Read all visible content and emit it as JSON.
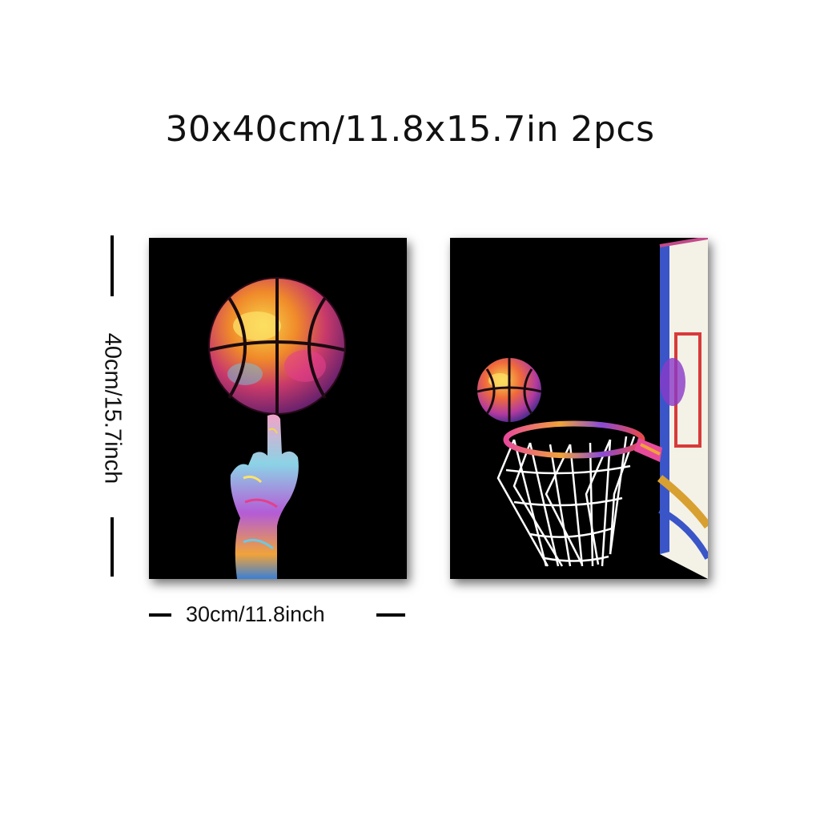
{
  "title": "30x40cm/11.8x15.7in 2pcs",
  "dimensions": {
    "height_label": "40cm/15.7inch",
    "width_label": "30cm/11.8inch"
  },
  "panels": [
    {
      "subject": "hand-spinning-basketball"
    },
    {
      "subject": "basketball-hoop-with-ball"
    }
  ],
  "colors": {
    "panel_background": "#000000",
    "page_background": "#ffffff"
  }
}
